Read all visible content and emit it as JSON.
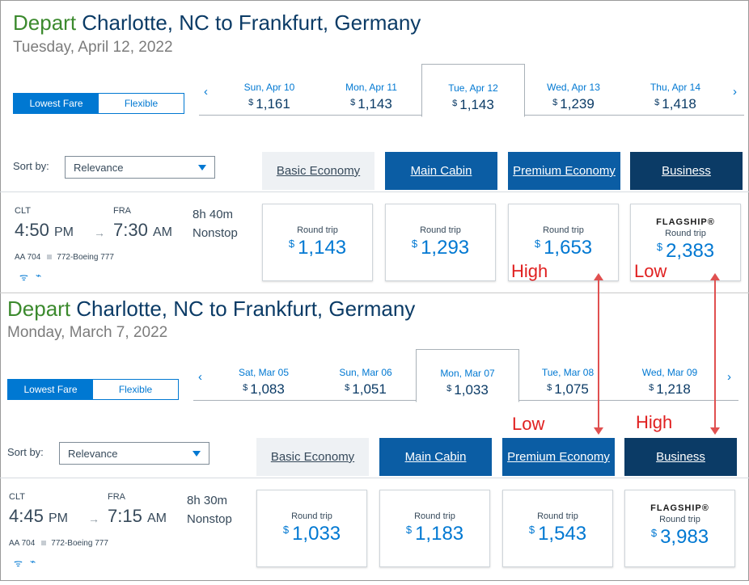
{
  "searches": [
    {
      "title_depart": "Depart",
      "title_route": "Charlotte, NC to Frankfurt, Germany",
      "date_line": "Tuesday, April 12, 2022",
      "toggle": {
        "lowest": "Lowest Fare",
        "flexible": "Flexible"
      },
      "dates": [
        {
          "label": "Sun, Apr 10",
          "price": "1,161"
        },
        {
          "label": "Mon, Apr 11",
          "price": "1,143"
        },
        {
          "label": "Tue, Apr 12",
          "price": "1,143",
          "selected": true
        },
        {
          "label": "Wed, Apr 13",
          "price": "1,239"
        },
        {
          "label": "Thu, Apr 14",
          "price": "1,418"
        }
      ],
      "sort_label": "Sort by:",
      "sort_value": "Relevance",
      "cabins": [
        "Basic Economy",
        "Main Cabin",
        "Premium Economy",
        "Business"
      ],
      "flight": {
        "origin": "CLT",
        "dest": "FRA",
        "dep_time": "4:50",
        "dep_ampm": "PM",
        "arr_time": "7:30",
        "arr_ampm": "AM",
        "duration": "8h  40m",
        "stops": "Nonstop",
        "flight_no": "AA 704",
        "aircraft": "772-Boeing 777"
      },
      "fares": [
        {
          "label": "Round trip",
          "amount": "1,143"
        },
        {
          "label": "Round trip",
          "amount": "1,293"
        },
        {
          "label": "Round trip",
          "amount": "1,653"
        },
        {
          "flag": "FLAGSHIP®",
          "label": "Round trip",
          "amount": "2,383"
        }
      ],
      "notes": {
        "premium": "High",
        "business": "Low"
      }
    },
    {
      "title_depart": "Depart",
      "title_route": "Charlotte, NC to Frankfurt, Germany",
      "date_line": "Monday, March 7, 2022",
      "toggle": {
        "lowest": "Lowest Fare",
        "flexible": "Flexible"
      },
      "dates": [
        {
          "label": "Sat, Mar 05",
          "price": "1,083"
        },
        {
          "label": "Sun, Mar 06",
          "price": "1,051"
        },
        {
          "label": "Mon, Mar 07",
          "price": "1,033",
          "selected": true
        },
        {
          "label": "Tue, Mar 08",
          "price": "1,075"
        },
        {
          "label": "Wed, Mar 09",
          "price": "1,218"
        }
      ],
      "sort_label": "Sort by:",
      "sort_value": "Relevance",
      "cabins": [
        "Basic Economy",
        "Main Cabin",
        "Premium Economy",
        "Business"
      ],
      "flight": {
        "origin": "CLT",
        "dest": "FRA",
        "dep_time": "4:45",
        "dep_ampm": "PM",
        "arr_time": "7:15",
        "arr_ampm": "AM",
        "duration": "8h  30m",
        "stops": "Nonstop",
        "flight_no": "AA 704",
        "aircraft": "772-Boeing 777"
      },
      "fares": [
        {
          "label": "Round trip",
          "amount": "1,033"
        },
        {
          "label": "Round trip",
          "amount": "1,183"
        },
        {
          "label": "Round trip",
          "amount": "1,543"
        },
        {
          "flag": "FLAGSHIP®",
          "label": "Round trip",
          "amount": "3,983"
        }
      ],
      "notes": {
        "premium": "Low",
        "business": "High"
      }
    }
  ],
  "currency_symbol": "$",
  "icons": {
    "prev": "chevron-left-icon",
    "next": "chevron-right-icon",
    "wifi": "wifi-icon",
    "power": "power-icon",
    "dropdown": "caret-down-icon"
  },
  "colors": {
    "accent": "#0078d2",
    "title_green": "#3c8a2e",
    "annotation_red": "#e02020",
    "business_navy": "#0b3b66"
  }
}
